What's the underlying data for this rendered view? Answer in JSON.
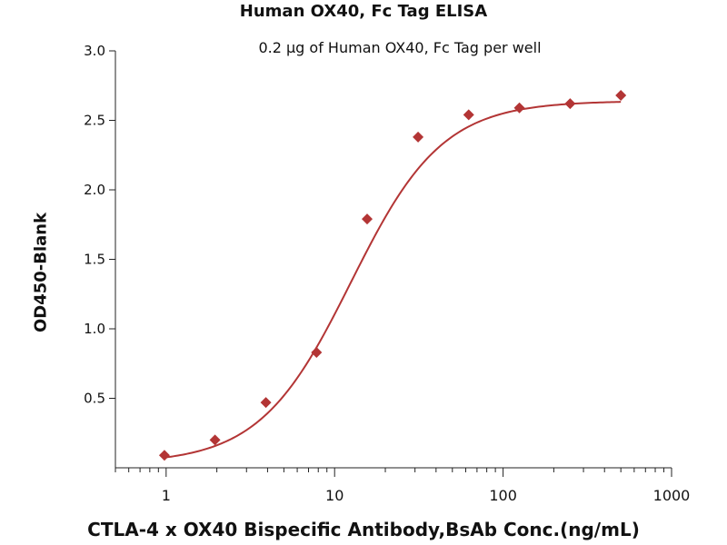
{
  "chart_data": {
    "type": "scatter",
    "title": "Human OX40, Fc Tag ELISA",
    "subtitle": "0.2 μg of Human OX40, Fc Tag  per well",
    "xlabel": "CTLA-4 x OX40 Bispecific Antibody,BsAb Conc.(ng/mL)",
    "ylabel": "OD450-Blank",
    "xscale": "log",
    "xlim": [
      0.5,
      1000
    ],
    "ylim": [
      0.0,
      3.0
    ],
    "xticks": [
      1,
      10,
      100,
      1000
    ],
    "xtick_labels": [
      "1",
      "10",
      "100",
      "1000"
    ],
    "yticks": [
      0.5,
      1.0,
      1.5,
      2.0,
      2.5,
      3.0
    ],
    "ytick_labels": [
      "0.5",
      "1.0",
      "1.5",
      "2.0",
      "2.5",
      "3.0"
    ],
    "grid": false,
    "legend": "none",
    "marker_color": "#b33535",
    "line_color": "#b33535",
    "series": [
      {
        "name": "CTLA-4 x OX40 Bispecific Antibody",
        "marker": "diamond",
        "x": [
          0.977,
          1.95,
          3.91,
          7.81,
          15.6,
          31.3,
          62.5,
          125,
          250,
          500
        ],
        "y": [
          0.09,
          0.2,
          0.47,
          0.83,
          1.79,
          2.38,
          2.54,
          2.59,
          2.62,
          2.68
        ]
      }
    ],
    "fit_curve": {
      "model": "4PL",
      "bottom": 0.03,
      "top": 2.64,
      "ec50": 12.5,
      "hill": 1.6,
      "xrange": [
        0.977,
        500
      ]
    }
  }
}
